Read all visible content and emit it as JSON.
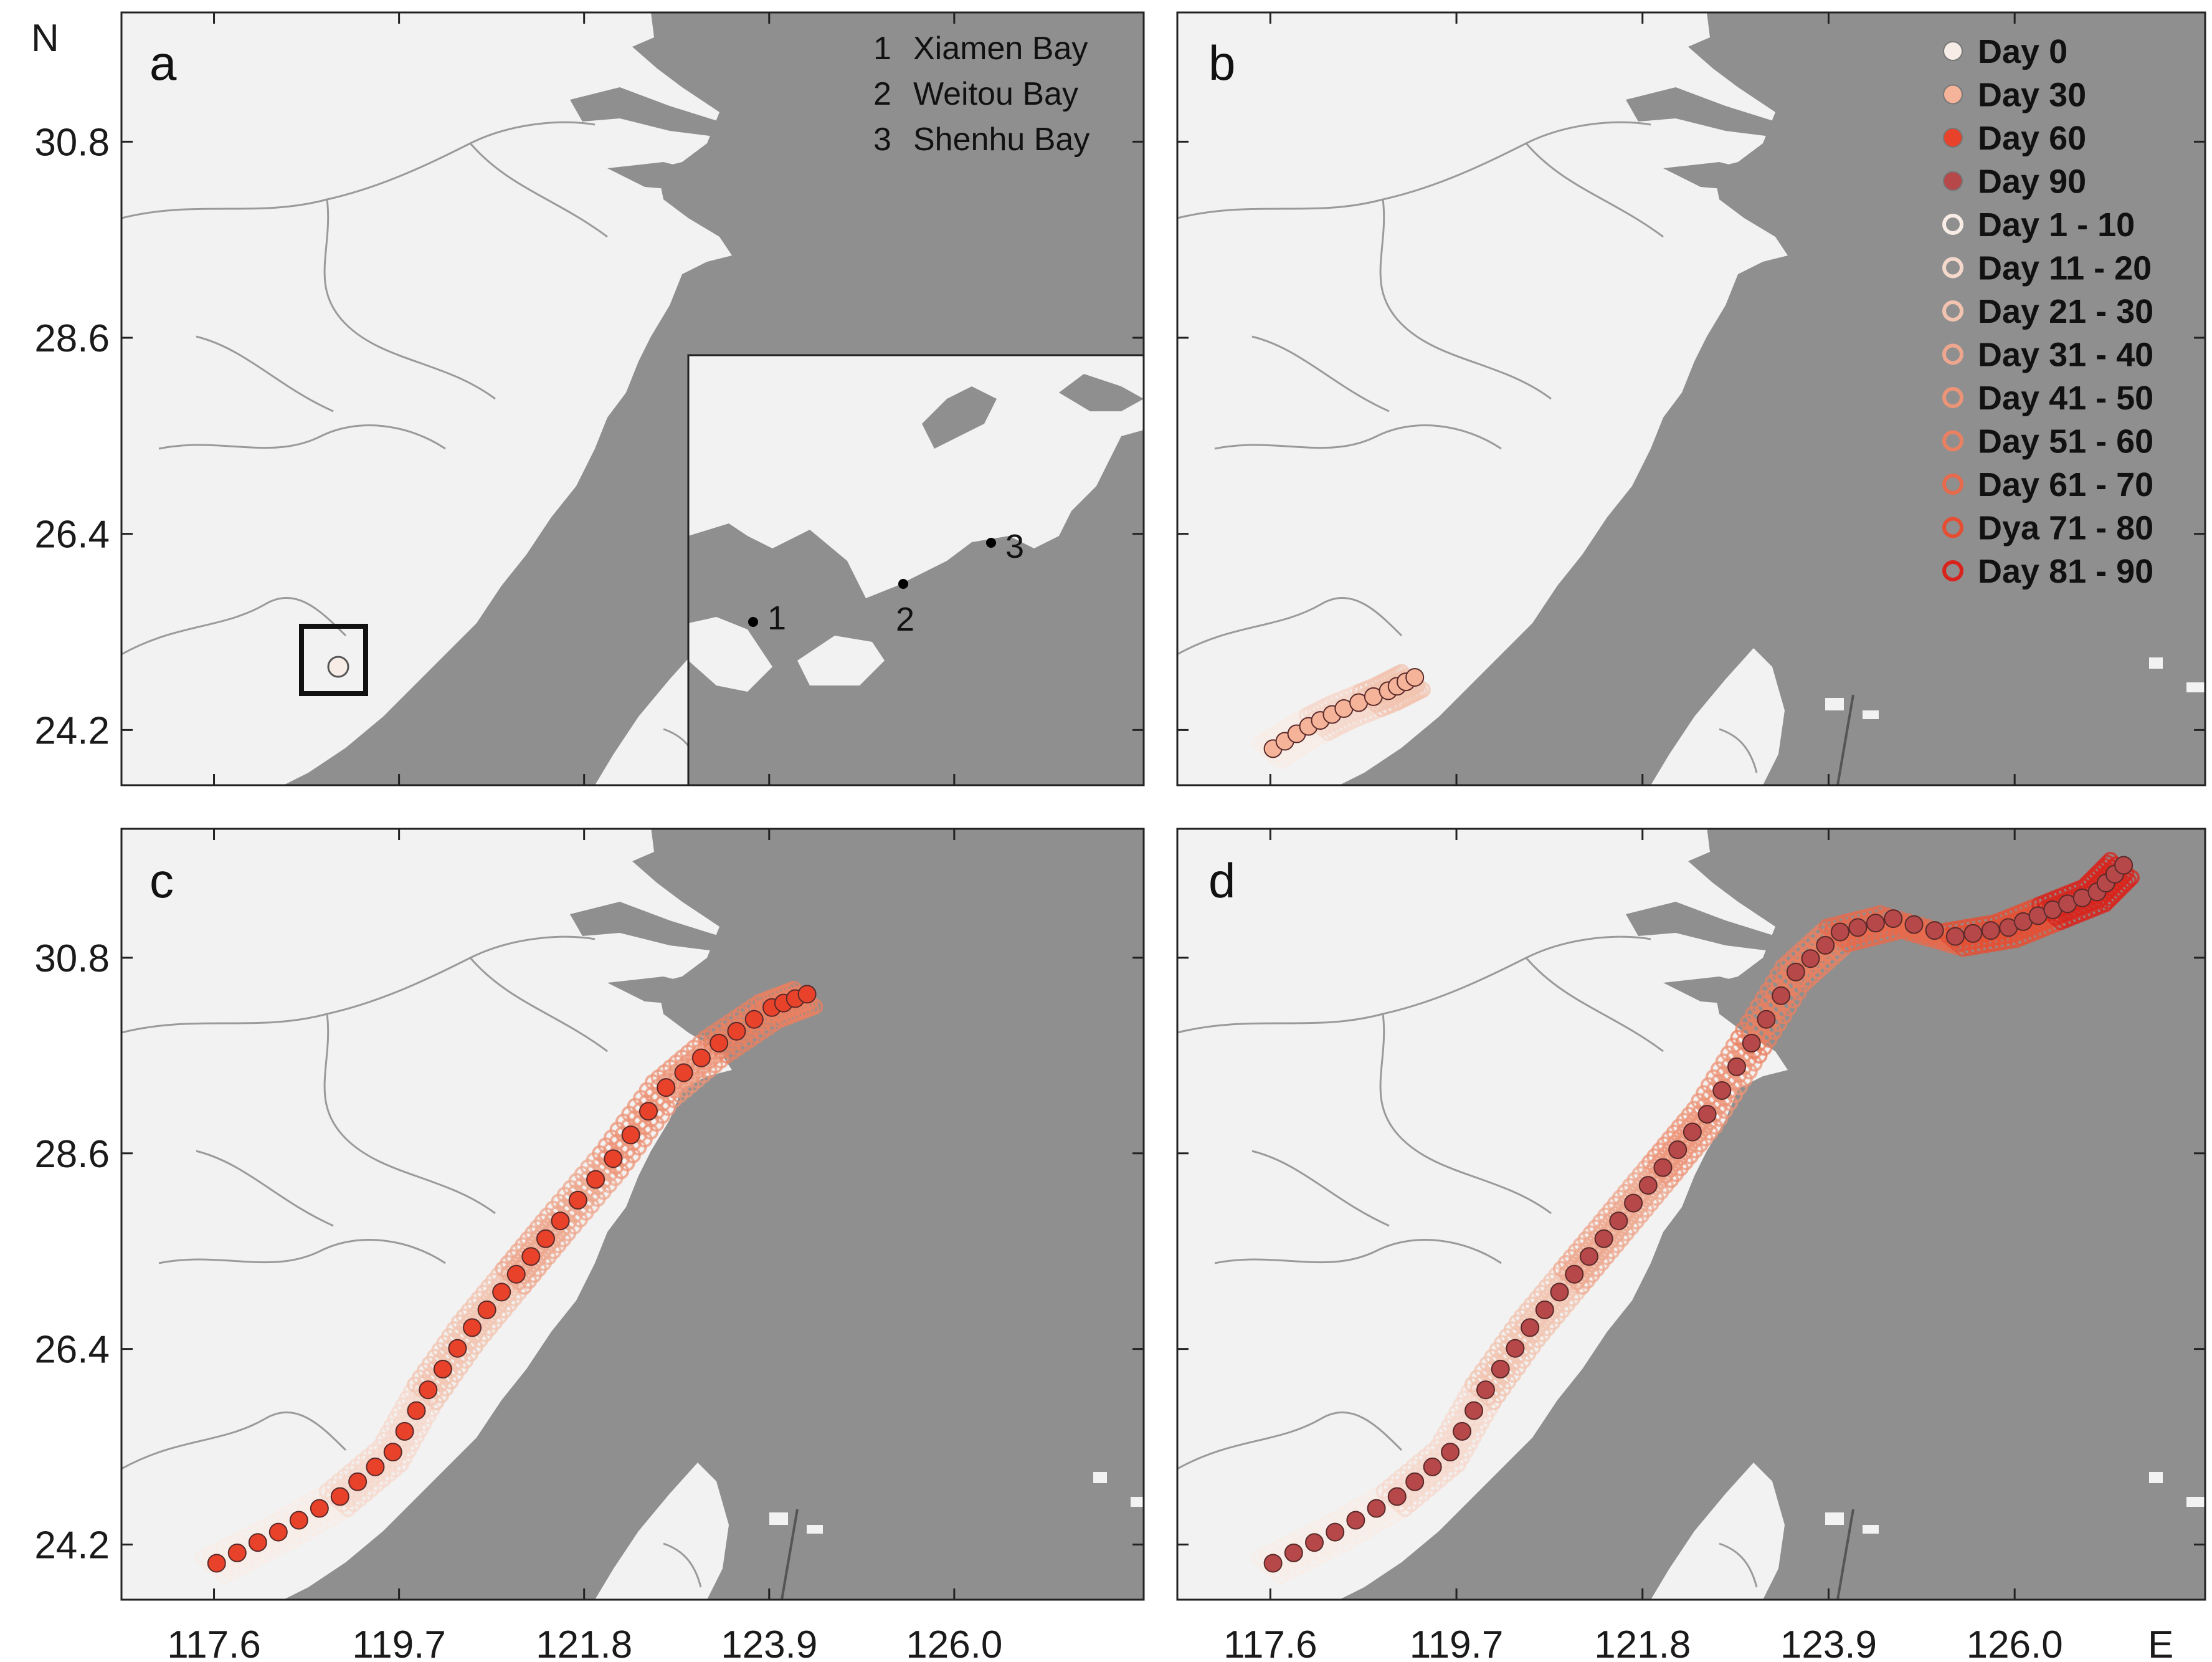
{
  "axes": {
    "x_ticks": [
      "117.6",
      "119.7",
      "121.8",
      "123.9",
      "126.0"
    ],
    "y_ticks": [
      "30.8",
      "28.6",
      "26.4",
      "24.2"
    ],
    "x_unit": "E",
    "y_unit": "N"
  },
  "panels": [
    {
      "letter": "a"
    },
    {
      "letter": "b"
    },
    {
      "letter": "c"
    },
    {
      "letter": "d"
    }
  ],
  "bays": [
    {
      "num": "1",
      "name": "Xiamen Bay"
    },
    {
      "num": "2",
      "name": "Weitou Bay"
    },
    {
      "num": "3",
      "name": "Shenhu Bay"
    }
  ],
  "legend": [
    {
      "label": "Day 0",
      "style": "filled",
      "color": "#f7ece6"
    },
    {
      "label": "Day 30",
      "style": "filled",
      "color": "#f5b49a"
    },
    {
      "label": "Day 60",
      "style": "filled",
      "color": "#e8422a"
    },
    {
      "label": "Day 90",
      "style": "filled",
      "color": "#b6484a"
    },
    {
      "label": "Day 1 - 10",
      "style": "ring",
      "color": "#f8ece6"
    },
    {
      "label": "Day 11 - 20",
      "style": "ring",
      "color": "#f5d8cc"
    },
    {
      "label": "Day 21 - 30",
      "style": "ring",
      "color": "#f2c4b0"
    },
    {
      "label": "Day 31 - 40",
      "style": "ring",
      "color": "#eea78e"
    },
    {
      "label": "Day 41 - 50",
      "style": "ring",
      "color": "#ec9478"
    },
    {
      "label": "Day 51 - 60",
      "style": "ring",
      "color": "#ea8062"
    },
    {
      "label": "Day 61 - 70",
      "style": "ring",
      "color": "#e86a4c"
    },
    {
      "label": "Dya 71 - 80",
      "style": "ring",
      "color": "#e44f34"
    },
    {
      "label": "Day 81 - 90",
      "style": "ring",
      "color": "#d8241c"
    }
  ],
  "colors": {
    "sea": "#8f8f8f",
    "land": "#f2f2f2",
    "border": "#9a9a9a"
  },
  "chart_data": {
    "type": "scatter",
    "x_ticks": [
      117.6,
      119.7,
      121.8,
      123.9,
      126.0
    ],
    "y_ticks": [
      30.8,
      28.6,
      26.4,
      24.2
    ],
    "xlim": [
      116.55,
      128.15
    ],
    "ylim": [
      23.58,
      32.25
    ],
    "release_site": [
      118.55,
      24.5
    ],
    "trajectories": {
      "b": [
        [
          117.6,
          23.95
        ],
        [
          118.0,
          24.2
        ],
        [
          118.4,
          24.4
        ],
        [
          118.9,
          24.6
        ],
        [
          119.2,
          24.75
        ]
      ],
      "c": [
        [
          117.6,
          23.95
        ],
        [
          118.3,
          24.3
        ],
        [
          119.0,
          24.7
        ],
        [
          119.6,
          25.2
        ],
        [
          120.0,
          25.9
        ],
        [
          120.5,
          26.6
        ],
        [
          121.0,
          27.2
        ],
        [
          121.5,
          27.8
        ],
        [
          122.1,
          28.5
        ],
        [
          122.7,
          29.3
        ],
        [
          123.3,
          29.8
        ],
        [
          123.9,
          30.2
        ],
        [
          124.3,
          30.35
        ]
      ],
      "d": [
        [
          117.6,
          23.95
        ],
        [
          118.3,
          24.3
        ],
        [
          119.0,
          24.7
        ],
        [
          119.6,
          25.2
        ],
        [
          120.0,
          25.9
        ],
        [
          120.5,
          26.6
        ],
        [
          121.0,
          27.2
        ],
        [
          121.5,
          27.8
        ],
        [
          122.0,
          28.4
        ],
        [
          122.5,
          29.0
        ],
        [
          123.0,
          29.8
        ],
        [
          123.5,
          30.6
        ],
        [
          124.0,
          31.05
        ],
        [
          124.6,
          31.2
        ],
        [
          125.3,
          31.0
        ],
        [
          125.9,
          31.1
        ],
        [
          126.4,
          31.3
        ],
        [
          126.9,
          31.5
        ],
        [
          127.2,
          31.8
        ]
      ]
    }
  }
}
